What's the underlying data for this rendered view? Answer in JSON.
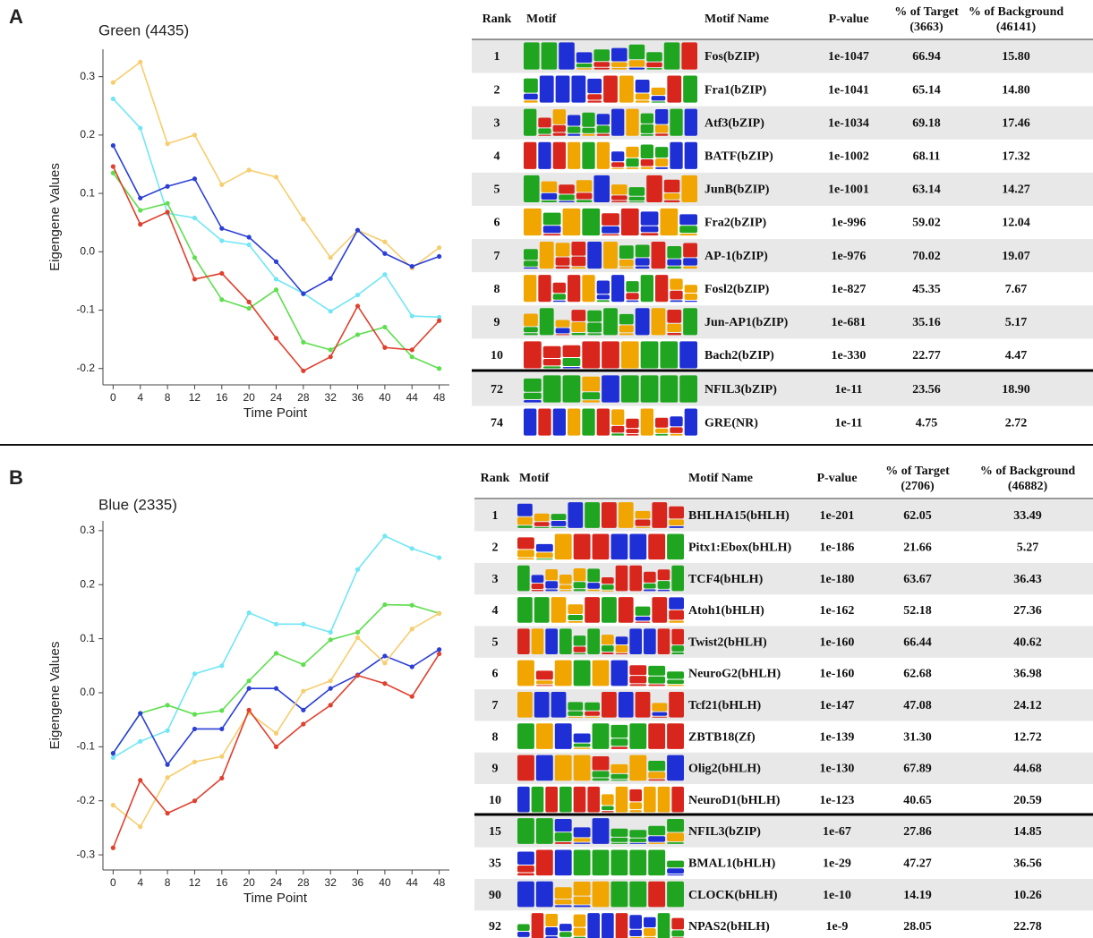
{
  "panels": [
    "A",
    "B"
  ],
  "chart_data": [
    {
      "type": "line",
      "title": "Green (4435)",
      "xlabel": "Time Point",
      "ylabel": "Eigengene Values",
      "x": [
        0,
        4,
        8,
        12,
        16,
        20,
        24,
        28,
        32,
        36,
        40,
        44,
        48
      ],
      "xlim": [
        -1.5,
        49.5
      ],
      "xticks": [
        0,
        4,
        8,
        12,
        16,
        20,
        24,
        28,
        32,
        36,
        40,
        44,
        48
      ],
      "ylim": [
        -0.228,
        0.347
      ],
      "yticks": [
        -0.2,
        -0.1,
        {
          "value": 0,
          "label": "0.0"
        },
        0.1,
        0.2,
        0.3
      ],
      "series": [
        {
          "color": "#f7cd6e",
          "values": [
            0.29,
            0.325,
            0.185,
            0.2,
            0.115,
            0.14,
            0.128,
            0.056,
            -0.01,
            0.037,
            0.017,
            -0.028,
            0.007
          ]
        },
        {
          "color": "#72e6f5",
          "values": [
            0.262,
            0.212,
            0.066,
            0.058,
            0.019,
            0.012,
            -0.047,
            -0.071,
            -0.102,
            -0.074,
            -0.039,
            -0.11,
            -0.112
          ]
        },
        {
          "color": "#2b3fd6",
          "values": [
            0.182,
            0.092,
            0.112,
            0.125,
            0.04,
            0.025,
            -0.017,
            -0.072,
            -0.046,
            0.037,
            -0.003,
            -0.025,
            -0.008
          ]
        },
        {
          "color": "#5fde4f",
          "values": [
            0.135,
            0.071,
            0.083,
            -0.01,
            -0.082,
            -0.097,
            -0.065,
            -0.155,
            -0.168,
            -0.142,
            -0.129,
            -0.18,
            -0.2
          ]
        },
        {
          "color": "#e0402e",
          "values": [
            0.146,
            0.047,
            0.068,
            -0.047,
            -0.037,
            -0.086,
            -0.148,
            -0.204,
            -0.18,
            -0.093,
            -0.164,
            -0.168,
            -0.118
          ]
        }
      ]
    },
    {
      "type": "line",
      "title": "Blue (2335)",
      "xlabel": "Time Point",
      "ylabel": "Eigengene Values",
      "x": [
        0,
        4,
        8,
        12,
        16,
        20,
        24,
        28,
        32,
        36,
        40,
        44,
        48
      ],
      "xlim": [
        -1.5,
        49.5
      ],
      "xticks": [
        0,
        4,
        8,
        12,
        16,
        20,
        24,
        28,
        32,
        36,
        40,
        44,
        48
      ],
      "ylim": [
        -0.328,
        0.318
      ],
      "yticks": [
        -0.3,
        -0.2,
        -0.1,
        {
          "value": 0,
          "label": "0.0"
        },
        0.1,
        0.2,
        0.3
      ],
      "series": [
        {
          "color": "#72e6f5",
          "values": [
            -0.12,
            -0.09,
            -0.07,
            0.035,
            0.05,
            0.148,
            0.127,
            0.127,
            0.112,
            0.228,
            0.29,
            0.267,
            0.25
          ]
        },
        {
          "color": "#5fde4f",
          "values": [
            -0.112,
            -0.038,
            -0.023,
            -0.04,
            -0.033,
            0.022,
            0.073,
            0.052,
            0.098,
            0.112,
            0.163,
            0.162,
            0.147
          ]
        },
        {
          "color": "#2b3fd6",
          "values": [
            -0.112,
            -0.038,
            -0.133,
            -0.067,
            -0.067,
            0.008,
            0.008,
            -0.032,
            0.008,
            0.033,
            0.068,
            0.048,
            0.08
          ]
        },
        {
          "color": "#f7cd6e",
          "values": [
            -0.208,
            -0.248,
            -0.157,
            -0.128,
            -0.118,
            -0.037,
            -0.075,
            0.003,
            0.022,
            0.102,
            0.055,
            0.118,
            0.147
          ]
        },
        {
          "color": "#e0402e",
          "values": [
            -0.287,
            -0.162,
            -0.223,
            -0.2,
            -0.158,
            -0.032,
            -0.1,
            -0.058,
            -0.023,
            0.032,
            0.017,
            -0.007,
            0.072
          ]
        }
      ]
    }
  ],
  "tables": [
    {
      "header": [
        "Rank",
        "Motif",
        "Motif Name",
        "P-value",
        [
          "% of Target",
          "(3663)"
        ],
        [
          "% of Background",
          "(46141)"
        ]
      ],
      "rows": [
        [
          1,
          "Fos(bZIP)",
          "1e-1047",
          "66.94",
          "15.80"
        ],
        [
          2,
          "Fra1(bZIP)",
          "1e-1041",
          "65.14",
          "14.80"
        ],
        [
          3,
          "Atf3(bZIP)",
          "1e-1034",
          "69.18",
          "17.46"
        ],
        [
          4,
          "BATF(bZIP)",
          "1e-1002",
          "68.11",
          "17.32"
        ],
        [
          5,
          "JunB(bZIP)",
          "1e-1001",
          "63.14",
          "14.27"
        ],
        [
          6,
          "Fra2(bZIP)",
          "1e-996",
          "59.02",
          "12.04"
        ],
        [
          7,
          "AP-1(bZIP)",
          "1e-976",
          "70.02",
          "19.07"
        ],
        [
          8,
          "Fosl2(bZIP)",
          "1e-827",
          "45.35",
          "7.67"
        ],
        [
          9,
          "Jun-AP1(bZIP)",
          "1e-681",
          "35.16",
          "5.17"
        ],
        [
          10,
          "Bach2(bZIP)",
          "1e-330",
          "22.77",
          "4.47"
        ],
        [
          72,
          "NFIL3(bZIP)",
          "1e-11",
          "23.56",
          "18.90"
        ],
        [
          74,
          "GRE(NR)",
          "1e-11",
          "4.75",
          "2.72"
        ]
      ]
    },
    {
      "header": [
        "Rank",
        "Motif",
        "Motif Name",
        "P-value",
        [
          "% of Target",
          "(2706)"
        ],
        [
          "% of Background",
          "(46882)"
        ]
      ],
      "rows": [
        [
          1,
          "BHLHA15(bHLH)",
          "1e-201",
          "62.05",
          "33.49"
        ],
        [
          2,
          "Pitx1:Ebox(bHLH)",
          "1e-186",
          "21.66",
          "5.27"
        ],
        [
          3,
          "TCF4(bHLH)",
          "1e-180",
          "63.67",
          "36.43"
        ],
        [
          4,
          "Atoh1(bHLH)",
          "1e-162",
          "52.18",
          "27.36"
        ],
        [
          5,
          "Twist2(bHLH)",
          "1e-160",
          "66.44",
          "40.62"
        ],
        [
          6,
          "NeuroG2(bHLH)",
          "1e-160",
          "62.68",
          "36.98"
        ],
        [
          7,
          "Tcf21(bHLH)",
          "1e-147",
          "47.08",
          "24.12"
        ],
        [
          8,
          "ZBTB18(Zf)",
          "1e-139",
          "31.30",
          "12.72"
        ],
        [
          9,
          "Olig2(bHLH)",
          "1e-130",
          "67.89",
          "44.68"
        ],
        [
          10,
          "NeuroD1(bHLH)",
          "1e-123",
          "40.65",
          "20.59"
        ],
        [
          15,
          "NFIL3(bZIP)",
          "1e-67",
          "27.86",
          "14.85"
        ],
        [
          35,
          "BMAL1(bHLH)",
          "1e-29",
          "47.27",
          "36.56"
        ],
        [
          90,
          "CLOCK(bHLH)",
          "1e-10",
          "14.19",
          "10.26"
        ],
        [
          92,
          "NPAS2(bHLH)",
          "1e-9",
          "28.05",
          "22.78"
        ]
      ]
    }
  ]
}
